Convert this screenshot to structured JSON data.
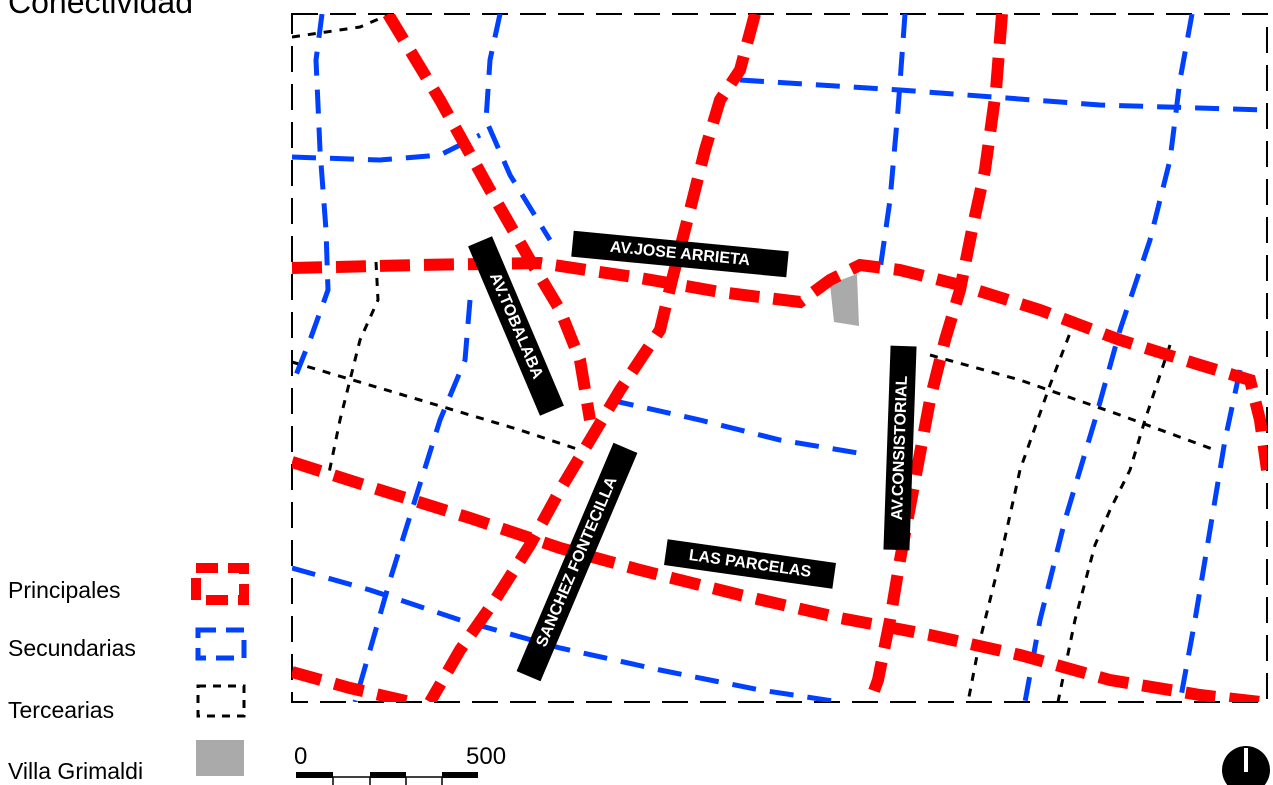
{
  "title": "Conectividad",
  "colors": {
    "principales": "#ff0000",
    "secundarias": "#0040ff",
    "tercearias": "#000000",
    "villa_grimaldi": "#aaaaaa"
  },
  "legend": {
    "principales": "Principales",
    "secundarias": "Secundarias",
    "tercearias": "Tercearias",
    "villa_grimaldi": "Villa Grimaldi"
  },
  "streets": {
    "jose_arrieta": "AV.JOSE ARRIETA",
    "tobalaba": "AV.TOBALABA",
    "consistorial": "AV.CONSISTORIAL",
    "sanchez_fontecilla": "SANCHEZ FONTECILLA",
    "las_parcelas": "LAS PARCELAS"
  },
  "scale": {
    "start": "0",
    "end": "500"
  },
  "north_icon": "north-arrow-icon"
}
